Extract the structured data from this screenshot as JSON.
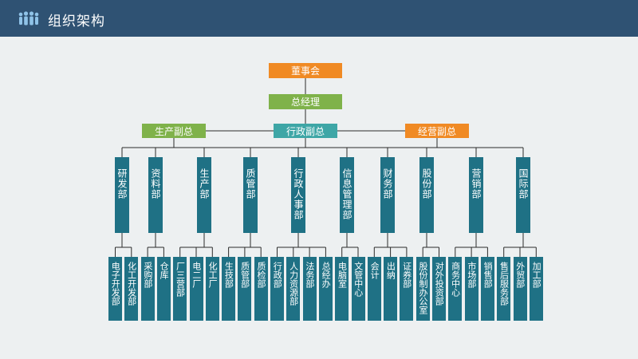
{
  "header": {
    "title": "组织架构",
    "logo_icon": "people-group-icon"
  },
  "org": {
    "board": "董事会",
    "gm": "总经理",
    "vps": [
      {
        "label": "生产副总",
        "color": "#7fb24a"
      },
      {
        "label": "行政副总",
        "color": "#3ea6a6"
      },
      {
        "label": "经营副总",
        "color": "#f08a24"
      }
    ],
    "departments": [
      {
        "label": "研发部",
        "subs": [
          "电子开发部",
          "化工开发部"
        ]
      },
      {
        "label": "资料部",
        "subs": [
          "采购部",
          "仓库"
        ]
      },
      {
        "label": "生产部",
        "subs": [
          "厂三营部",
          "电二厂",
          "化工厂"
        ]
      },
      {
        "label": "质管部",
        "subs": [
          "生技部",
          "质管部",
          "质检部"
        ]
      },
      {
        "label": "行政人事部",
        "subs": [
          "行政部",
          "人力资源部",
          "法务部",
          "总经办"
        ]
      },
      {
        "label": "信息管理部",
        "subs": [
          "电脑室",
          "文管中心"
        ]
      },
      {
        "label": "财务部",
        "subs": [
          "会计",
          "出纳",
          "证券部"
        ]
      },
      {
        "label": "股份部",
        "subs": [
          "股份制办公室",
          "对外投资部"
        ]
      },
      {
        "label": "营销部",
        "subs": [
          "商务中心",
          "市场部",
          "销售部"
        ]
      },
      {
        "label": "国际部",
        "subs": [
          "售后服务部",
          "外贸部",
          "加工部"
        ]
      }
    ]
  },
  "colors": {
    "header": "#2f5273",
    "board": "#f08a24",
    "gm": "#7fb24a",
    "dept": "#1f7185",
    "line": "#2b2b2b"
  }
}
